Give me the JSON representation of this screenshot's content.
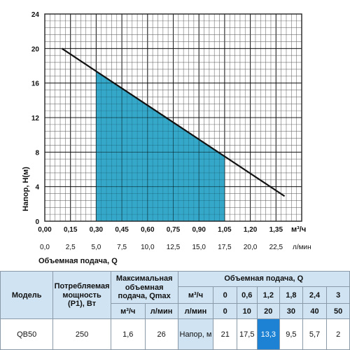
{
  "chart_data": {
    "type": "line",
    "ylabel": "Напор, H(м)",
    "y_ticks": [
      "0",
      "4",
      "8",
      "12",
      "16",
      "20",
      "24"
    ],
    "ylim": [
      0,
      24
    ],
    "x_ticks_primary": [
      "0,00",
      "0,15",
      "0,30",
      "0,45",
      "0,60",
      "0,75",
      "0,90",
      "1,05",
      "1,20",
      "1,35"
    ],
    "x_unit_primary": "м³/ч",
    "x_ticks_secondary": [
      "0,0",
      "2,5",
      "5,0",
      "7,5",
      "10,0",
      "12,5",
      "15,0",
      "17,5",
      "20,0",
      "22,5"
    ],
    "x_unit_secondary": "л/мин",
    "xlim": [
      0,
      1.5
    ],
    "xlabel": "Объемная подача, Q",
    "grid": true,
    "curve": {
      "x": [
        0.1,
        1.4
      ],
      "y": [
        20,
        2.9
      ]
    },
    "working_range": {
      "x": [
        0.3,
        1.05
      ],
      "color": "#2aa3c6"
    },
    "line_color": "#111111"
  },
  "table": {
    "model_header": "Модель",
    "power_header": "Потребляемая мощность (P1), Вт",
    "qmax_header": "Максимальная объемная подача, Qmax",
    "qmax_unit_m3": "м³/ч",
    "qmax_unit_lmin": "л/мин",
    "flow_header": "Объемная подача, Q",
    "unit_m3": "м³/ч",
    "unit_lmin": "л/мин",
    "flow_m3": [
      "0",
      "0,6",
      "1,2",
      "1,8",
      "2,4",
      "3"
    ],
    "flow_lmin": [
      "0",
      "10",
      "20",
      "30",
      "40",
      "50"
    ],
    "head_label": "Напор, м",
    "row": {
      "model": "QB50",
      "power": "250",
      "qmax_m3": "1,6",
      "qmax_lmin": "26",
      "heads": [
        "21",
        "17,5",
        "13,3",
        "9,5",
        "5,7",
        "2"
      ]
    },
    "highlight_color": "#1e82d4",
    "header_bg": "#cfe3f2"
  }
}
